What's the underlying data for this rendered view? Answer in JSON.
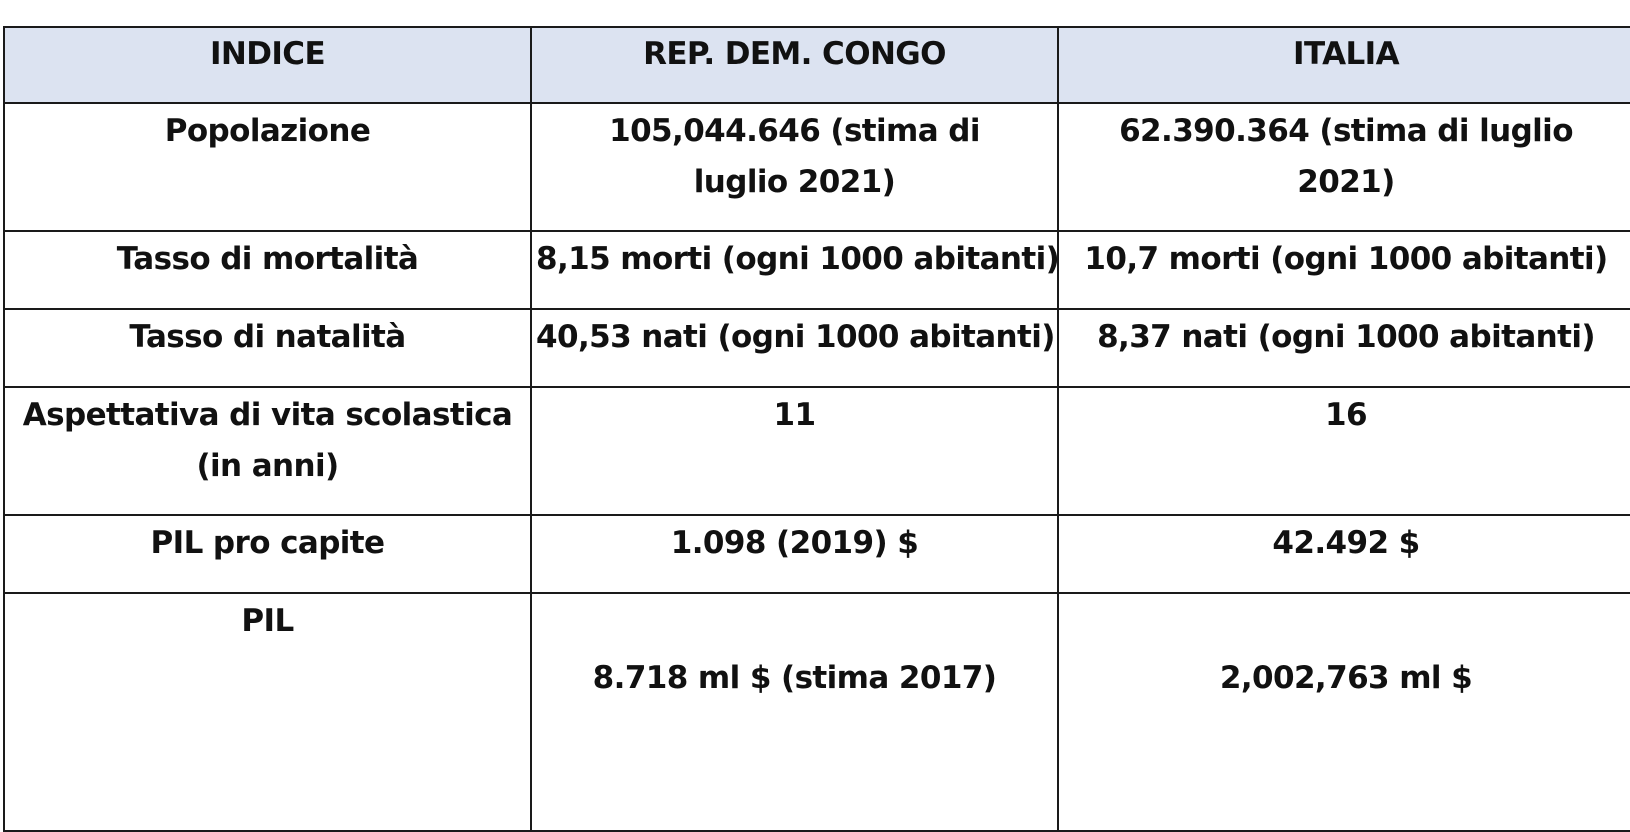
{
  "table": {
    "headers": [
      "INDICE",
      "REP. DEM. CONGO",
      "ITALIA"
    ],
    "rows": [
      [
        "Popolazione",
        "105,044.646 (stima di luglio 2021)",
        "62.390.364 (stima di luglio 2021)"
      ],
      [
        "Tasso di mortalità",
        "8,15 morti (ogni 1000 abitanti)",
        "10,7 morti (ogni 1000 abitanti)"
      ],
      [
        "Tasso di natalità",
        "40,53 nati (ogni 1000 abitanti)",
        "8,37 nati (ogni 1000 abitanti)"
      ],
      [
        "Aspettativa di vita scolastica (in anni)",
        "11",
        "16"
      ],
      [
        "PIL pro capite",
        "1.098 (2019) $",
        "42.492 $"
      ],
      [
        "PIL",
        "8.718 ml $ (stima 2017)",
        "2,002,763 ml $"
      ]
    ]
  },
  "colors": {
    "header_background": "#dce3f1",
    "border": "#1a1a1a"
  }
}
